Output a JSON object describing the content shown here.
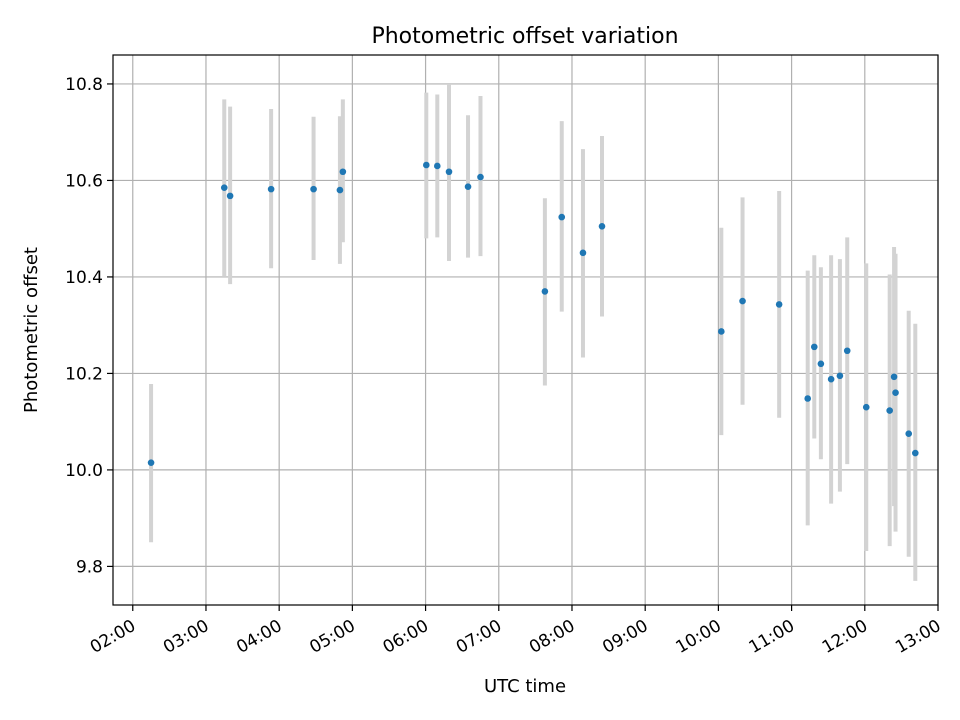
{
  "chart_data": {
    "type": "scatter",
    "title": "Photometric offset variation",
    "xlabel": "UTC time",
    "ylabel": "Photometric offset",
    "x_unit": "hours (UTC)",
    "xlim": [
      1.73,
      13.0
    ],
    "ylim": [
      9.72,
      10.86
    ],
    "grid": true,
    "colors": {
      "point": "#1f77b4",
      "errorbar": "#d3d3d3",
      "grid": "#b0b0b0",
      "axes": "#000000"
    },
    "x_ticks": [
      {
        "value": 2,
        "label": "02:00"
      },
      {
        "value": 3,
        "label": "03:00"
      },
      {
        "value": 4,
        "label": "04:00"
      },
      {
        "value": 5,
        "label": "05:00"
      },
      {
        "value": 6,
        "label": "06:00"
      },
      {
        "value": 7,
        "label": "07:00"
      },
      {
        "value": 8,
        "label": "08:00"
      },
      {
        "value": 9,
        "label": "09:00"
      },
      {
        "value": 10,
        "label": "10:00"
      },
      {
        "value": 11,
        "label": "11:00"
      },
      {
        "value": 12,
        "label": "12:00"
      },
      {
        "value": 13,
        "label": "13:00"
      }
    ],
    "y_ticks": [
      {
        "value": 9.8,
        "label": "9.8"
      },
      {
        "value": 10.0,
        "label": "10.0"
      },
      {
        "value": 10.2,
        "label": "10.2"
      },
      {
        "value": 10.4,
        "label": "10.4"
      },
      {
        "value": 10.6,
        "label": "10.6"
      },
      {
        "value": 10.8,
        "label": "10.8"
      }
    ],
    "points": [
      {
        "x": 2.25,
        "y": 10.015,
        "ylow": 9.85,
        "yhigh": 10.178
      },
      {
        "x": 3.25,
        "y": 10.585,
        "ylow": 10.4,
        "yhigh": 10.768
      },
      {
        "x": 3.33,
        "y": 10.568,
        "ylow": 10.385,
        "yhigh": 10.753
      },
      {
        "x": 3.89,
        "y": 10.582,
        "ylow": 10.418,
        "yhigh": 10.748
      },
      {
        "x": 4.47,
        "y": 10.582,
        "ylow": 10.435,
        "yhigh": 10.732
      },
      {
        "x": 4.83,
        "y": 10.58,
        "ylow": 10.427,
        "yhigh": 10.733
      },
      {
        "x": 4.87,
        "y": 10.618,
        "ylow": 10.472,
        "yhigh": 10.768
      },
      {
        "x": 6.01,
        "y": 10.632,
        "ylow": 10.48,
        "yhigh": 10.782
      },
      {
        "x": 6.16,
        "y": 10.63,
        "ylow": 10.482,
        "yhigh": 10.778
      },
      {
        "x": 6.32,
        "y": 10.618,
        "ylow": 10.433,
        "yhigh": 10.8
      },
      {
        "x": 6.58,
        "y": 10.587,
        "ylow": 10.44,
        "yhigh": 10.735
      },
      {
        "x": 6.75,
        "y": 10.607,
        "ylow": 10.443,
        "yhigh": 10.775
      },
      {
        "x": 7.63,
        "y": 10.37,
        "ylow": 10.175,
        "yhigh": 10.563
      },
      {
        "x": 7.86,
        "y": 10.524,
        "ylow": 10.328,
        "yhigh": 10.723
      },
      {
        "x": 8.15,
        "y": 10.45,
        "ylow": 10.233,
        "yhigh": 10.665
      },
      {
        "x": 8.41,
        "y": 10.505,
        "ylow": 10.318,
        "yhigh": 10.692
      },
      {
        "x": 10.04,
        "y": 10.287,
        "ylow": 10.072,
        "yhigh": 10.502
      },
      {
        "x": 10.33,
        "y": 10.35,
        "ylow": 10.135,
        "yhigh": 10.565
      },
      {
        "x": 10.83,
        "y": 10.343,
        "ylow": 10.108,
        "yhigh": 10.578
      },
      {
        "x": 11.22,
        "y": 10.148,
        "ylow": 9.885,
        "yhigh": 10.413
      },
      {
        "x": 11.31,
        "y": 10.255,
        "ylow": 10.065,
        "yhigh": 10.445
      },
      {
        "x": 11.4,
        "y": 10.22,
        "ylow": 10.022,
        "yhigh": 10.42
      },
      {
        "x": 11.54,
        "y": 10.188,
        "ylow": 9.93,
        "yhigh": 10.445
      },
      {
        "x": 11.66,
        "y": 10.195,
        "ylow": 9.955,
        "yhigh": 10.437
      },
      {
        "x": 11.76,
        "y": 10.247,
        "ylow": 10.012,
        "yhigh": 10.482
      },
      {
        "x": 12.02,
        "y": 10.13,
        "ylow": 9.832,
        "yhigh": 10.428
      },
      {
        "x": 12.34,
        "y": 10.123,
        "ylow": 9.842,
        "yhigh": 10.405
      },
      {
        "x": 12.4,
        "y": 10.193,
        "ylow": 9.925,
        "yhigh": 10.462
      },
      {
        "x": 12.42,
        "y": 10.16,
        "ylow": 9.872,
        "yhigh": 10.448
      },
      {
        "x": 12.6,
        "y": 10.075,
        "ylow": 9.82,
        "yhigh": 10.33
      },
      {
        "x": 12.69,
        "y": 10.035,
        "ylow": 9.77,
        "yhigh": 10.303
      }
    ]
  }
}
